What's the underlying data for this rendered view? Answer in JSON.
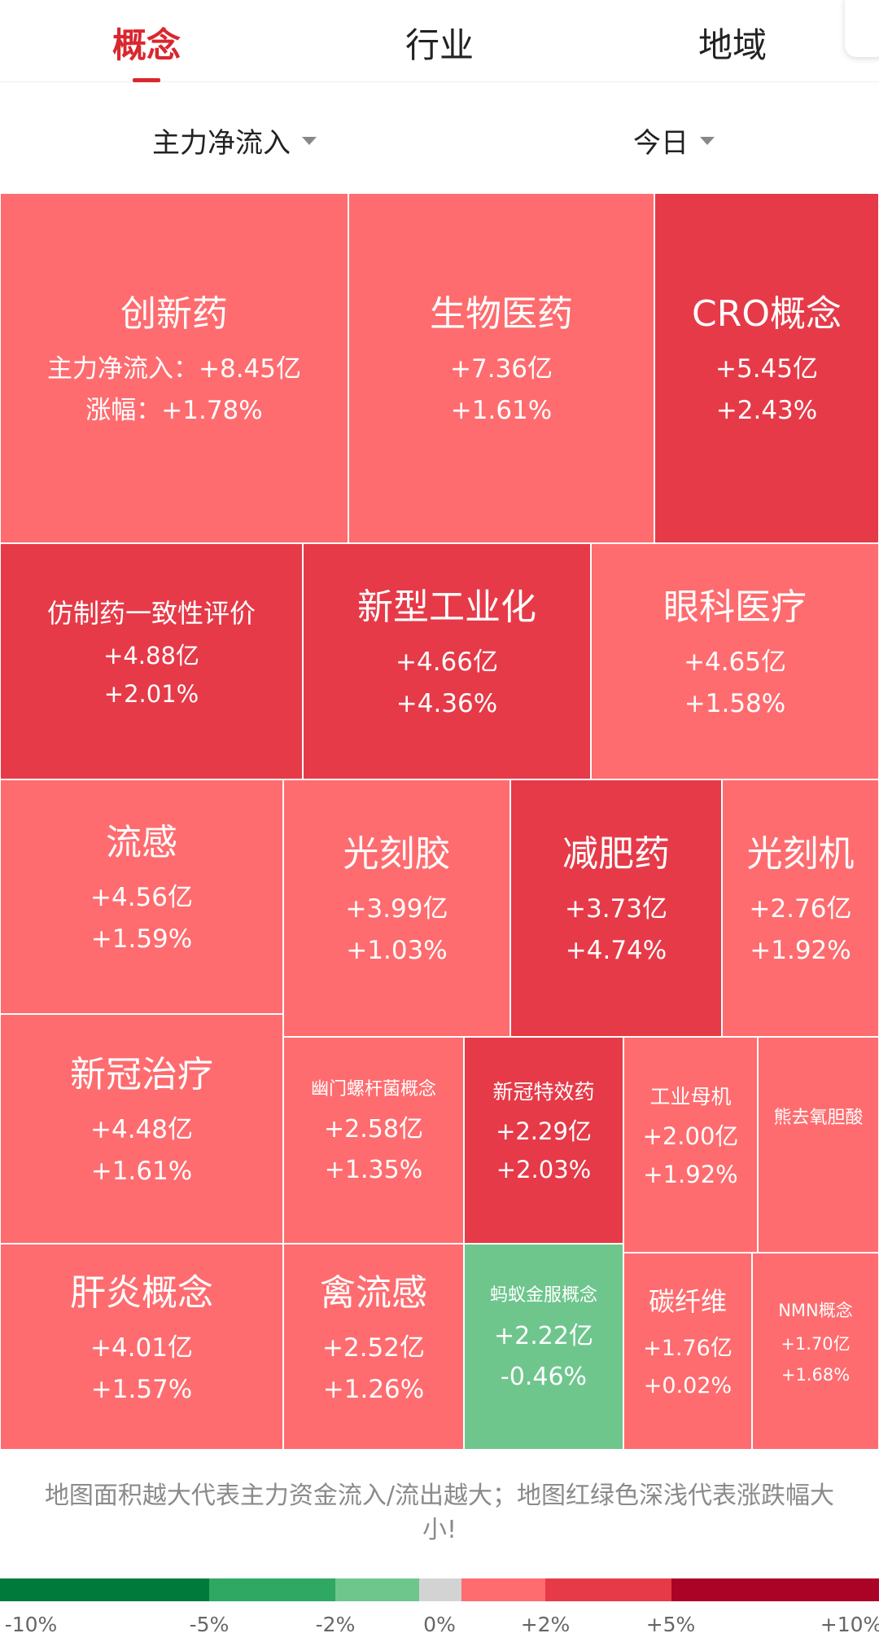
{
  "tabs": [
    {
      "label": "概念",
      "active": true
    },
    {
      "label": "行业",
      "active": false
    },
    {
      "label": "地域",
      "active": false
    }
  ],
  "filters": {
    "metric": "主力净流入",
    "period": "今日"
  },
  "colors": {
    "light_red": "#fe6c6f",
    "mid_red": "#e63a48",
    "light_green": "#6ec68d",
    "accent": "#d9272e"
  },
  "tiles": [
    {
      "name": "创新药",
      "flow_prefix": "主力净流入：",
      "flow": "+8.45亿",
      "pct_prefix": "涨幅：",
      "pct": "+1.78%",
      "color": "#fe6c6f"
    },
    {
      "name": "生物医药",
      "flow": "+7.36亿",
      "pct": "+1.61%",
      "color": "#fe6c6f"
    },
    {
      "name": "CRO概念",
      "flow": "+5.45亿",
      "pct": "+2.43%",
      "color": "#e63a48"
    },
    {
      "name": "仿制药一致性评价",
      "flow": "+4.88亿",
      "pct": "+2.01%",
      "color": "#e63a48"
    },
    {
      "name": "新型工业化",
      "flow": "+4.66亿",
      "pct": "+4.36%",
      "color": "#e63a48"
    },
    {
      "name": "眼科医疗",
      "flow": "+4.65亿",
      "pct": "+1.58%",
      "color": "#fe6c6f"
    },
    {
      "name": "流感",
      "flow": "+4.56亿",
      "pct": "+1.59%",
      "color": "#fe6c6f"
    },
    {
      "name": "光刻胶",
      "flow": "+3.99亿",
      "pct": "+1.03%",
      "color": "#fe6c6f"
    },
    {
      "name": "减肥药",
      "flow": "+3.73亿",
      "pct": "+4.74%",
      "color": "#e63a48"
    },
    {
      "name": "光刻机",
      "flow": "+2.76亿",
      "pct": "+1.92%",
      "color": "#fe6c6f"
    },
    {
      "name": "新冠治疗",
      "flow": "+4.48亿",
      "pct": "+1.61%",
      "color": "#fe6c6f"
    },
    {
      "name": "肝炎概念",
      "flow": "+4.01亿",
      "pct": "+1.57%",
      "color": "#fe6c6f"
    },
    {
      "name": "幽门螺杆菌概念",
      "flow": "+2.58亿",
      "pct": "+1.35%",
      "color": "#fe6c6f"
    },
    {
      "name": "禽流感",
      "flow": "+2.52亿",
      "pct": "+1.26%",
      "color": "#fe6c6f"
    },
    {
      "name": "新冠特效药",
      "flow": "+2.29亿",
      "pct": "+2.03%",
      "color": "#e63a48"
    },
    {
      "name": "蚂蚁金服概念",
      "flow": "+2.22亿",
      "pct": "-0.46%",
      "color": "#6ec68d"
    },
    {
      "name": "工业母机",
      "flow": "+2.00亿",
      "pct": "+1.92%",
      "color": "#fe6c6f"
    },
    {
      "name": "熊去氧胆酸",
      "color": "#fe6c6f"
    },
    {
      "name": "碳纤维",
      "flow": "+1.76亿",
      "pct": "+0.02%",
      "color": "#fe6c6f"
    },
    {
      "name": "NMN概念",
      "flow": "+1.70亿",
      "pct": "+1.68%",
      "color": "#fe6c6f"
    }
  ],
  "note": "地图面积越大代表主力资金流入/流出越大；地图红绿色深浅代表涨跌幅大小!",
  "legend": {
    "colors": [
      "#007a3a",
      "#2ea862",
      "#6ec68d",
      "#d3d3d3",
      "#fe6c6f",
      "#e63a48",
      "#ab0326"
    ],
    "labels": [
      "-10%",
      "-5%",
      "-2%",
      "0%",
      "+2%",
      "+5%",
      "+10%"
    ]
  }
}
